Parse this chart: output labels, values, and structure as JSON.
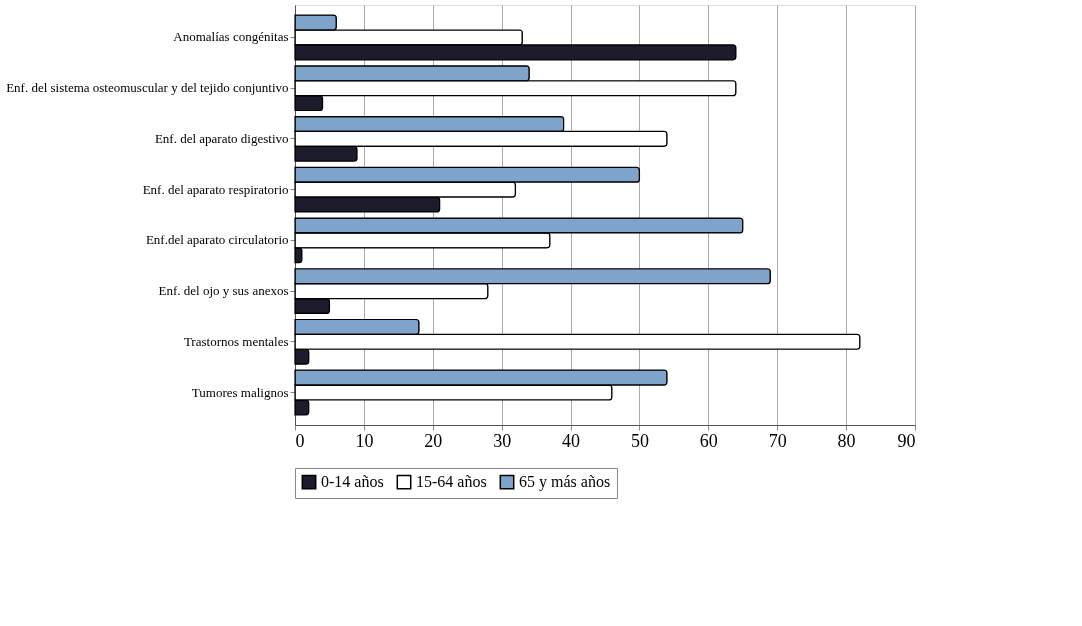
{
  "chart_data": {
    "type": "bar",
    "orientation": "horizontal",
    "categories": [
      "Anomalías congénitas",
      "Enf. del sistema osteomuscular y del tejido conjuntivo",
      "Enf. del aparato digestivo",
      "Enf. del aparato respiratorio",
      "Enf.del aparato circulatorio",
      "Enf. del ojo y sus anexos",
      "Trastornos mentales",
      "Tumores malignos"
    ],
    "series": [
      {
        "name": "0-14 años",
        "color": "#1c1c2c",
        "values": [
          64,
          4,
          9,
          21,
          1,
          5,
          2,
          2
        ]
      },
      {
        "name": "15-64 años",
        "color": "#ffffff",
        "values": [
          33,
          64,
          54,
          32,
          37,
          28,
          82,
          46
        ]
      },
      {
        "name": "65 y más años",
        "color": "#7fa4cc",
        "values": [
          6,
          34,
          39,
          50,
          65,
          69,
          18,
          54
        ]
      }
    ],
    "xlim": [
      0,
      90
    ],
    "xticks": [
      0,
      10,
      20,
      30,
      40,
      50,
      60,
      70,
      80,
      90
    ],
    "grid": "x",
    "legend": "bottom"
  }
}
